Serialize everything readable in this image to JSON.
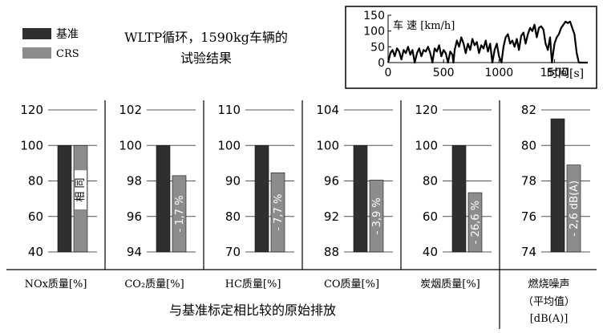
{
  "legend": {
    "base_label": "基准",
    "crs_label": "CRS",
    "base_color": "#2f2f2f",
    "crs_color": "#8c8c8c"
  },
  "title_lines": [
    "WLTP循环，1590kg车辆的",
    "试验结果"
  ],
  "bottom_caption": "与基准标定相比较的原始排放",
  "speed_chart": {
    "ylabel": "车 速  [km/h]",
    "xlabel": "时间[s]",
    "x_ticks": [
      0,
      500,
      1000,
      1500
    ],
    "y_ticks": [
      0,
      50,
      100,
      150
    ],
    "xlim": [
      0,
      1800
    ],
    "ylim": [
      0,
      150
    ],
    "trace_t": [
      0,
      20,
      40,
      60,
      80,
      100,
      120,
      140,
      160,
      180,
      200,
      220,
      240,
      260,
      280,
      300,
      320,
      340,
      360,
      380,
      400,
      420,
      440,
      460,
      480,
      500,
      520,
      540,
      560,
      580,
      589,
      600,
      620,
      640,
      660,
      680,
      700,
      720,
      740,
      760,
      780,
      800,
      820,
      840,
      860,
      880,
      900,
      920,
      940,
      960,
      980,
      1000,
      1022,
      1040,
      1060,
      1080,
      1100,
      1120,
      1140,
      1160,
      1180,
      1200,
      1220,
      1240,
      1260,
      1280,
      1300,
      1320,
      1340,
      1360,
      1380,
      1400,
      1420,
      1440,
      1460,
      1477,
      1500,
      1520,
      1540,
      1560,
      1580,
      1600,
      1620,
      1640,
      1660,
      1680,
      1700,
      1720,
      1740,
      1760,
      1780,
      1800
    ],
    "trace_v": [
      0,
      30,
      40,
      20,
      45,
      35,
      10,
      40,
      30,
      50,
      25,
      40,
      0,
      30,
      45,
      20,
      40,
      35,
      50,
      30,
      0,
      45,
      35,
      55,
      20,
      40,
      30,
      0,
      35,
      25,
      0,
      40,
      70,
      50,
      80,
      60,
      30,
      60,
      40,
      75,
      55,
      65,
      30,
      55,
      45,
      70,
      35,
      60,
      0,
      40,
      60,
      20,
      0,
      50,
      80,
      90,
      60,
      70,
      50,
      75,
      40,
      85,
      95,
      60,
      90,
      110,
      100,
      120,
      80,
      110,
      115,
      105,
      60,
      40,
      80,
      0,
      60,
      80,
      90,
      110,
      120,
      130,
      125,
      130,
      110,
      90,
      30,
      0,
      0,
      0,
      0,
      0
    ]
  },
  "chart_data": [
    {
      "type": "bar",
      "xlabel": "NOx质量[%]",
      "ylim": [
        40,
        120
      ],
      "yticks": [
        40,
        60,
        80,
        100,
        120
      ],
      "categories": [
        "基准",
        "CRS"
      ],
      "values": [
        100,
        100
      ],
      "annotation": "相 同"
    },
    {
      "type": "bar",
      "xlabel": "CO₂质量[%]",
      "ylim": [
        94,
        102
      ],
      "yticks": [
        94,
        96,
        98,
        100,
        102
      ],
      "categories": [
        "基准",
        "CRS"
      ],
      "values": [
        100,
        98.3
      ],
      "annotation": "- 1,7 %"
    },
    {
      "type": "bar",
      "xlabel": "HC质量[%]",
      "ylim": [
        70,
        110
      ],
      "yticks": [
        70,
        80,
        90,
        100,
        110
      ],
      "categories": [
        "基准",
        "CRS"
      ],
      "values": [
        100,
        92.3
      ],
      "annotation": "- 7,7 %"
    },
    {
      "type": "bar",
      "xlabel": "CO质量[%]",
      "ylim": [
        88,
        104
      ],
      "yticks": [
        88,
        92,
        96,
        100,
        104
      ],
      "categories": [
        "基准",
        "CRS"
      ],
      "values": [
        100,
        96.1
      ],
      "annotation": "- 3,9 %"
    },
    {
      "type": "bar",
      "xlabel": "炭烟质量[%]",
      "ylim": [
        40,
        120
      ],
      "yticks": [
        40,
        60,
        80,
        100,
        120
      ],
      "categories": [
        "基准",
        "CRS"
      ],
      "values": [
        100,
        73.4
      ],
      "annotation": "- 26,6 %"
    },
    {
      "type": "bar",
      "xlabel": "燃烧噪声",
      "xlabel2": "（平均值）",
      "xlabel3": "[dB(A)]",
      "ylim": [
        74,
        82
      ],
      "yticks": [
        74,
        76,
        78,
        80,
        82
      ],
      "categories": [
        "基准",
        "CRS"
      ],
      "values": [
        81.5,
        78.9
      ],
      "annotation": "- 2,6 dB(A)"
    }
  ]
}
